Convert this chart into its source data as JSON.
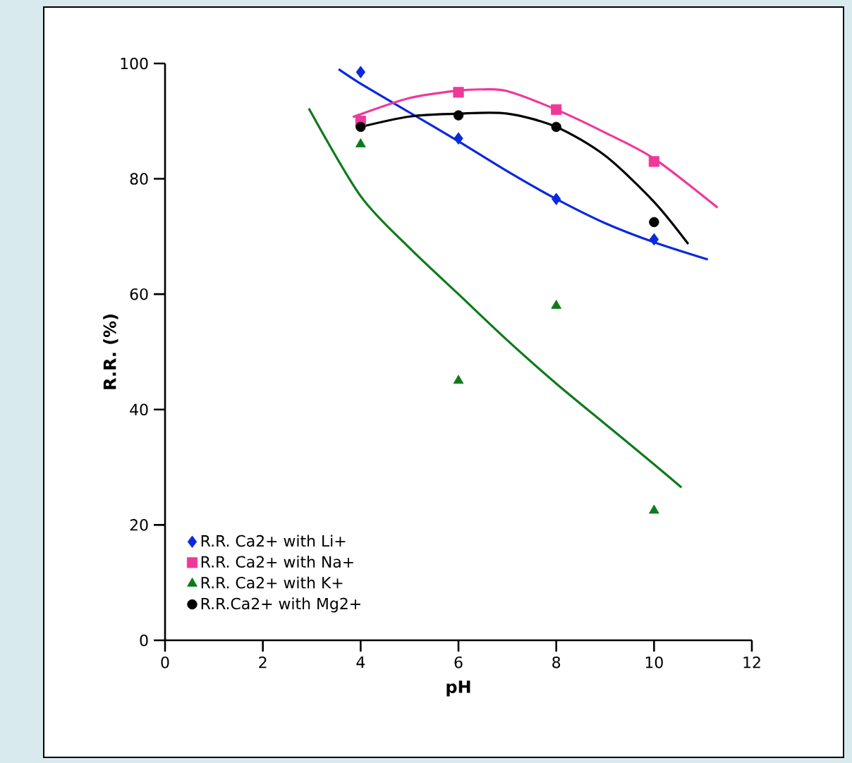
{
  "chart_data": {
    "type": "scatter",
    "xlabel": "pH",
    "ylabel": "R.R. (%)",
    "xlim": [
      0,
      12
    ],
    "xticks": [
      0,
      2,
      4,
      6,
      8,
      10,
      12
    ],
    "ylim": [
      0,
      100
    ],
    "yticks": [
      0,
      20,
      40,
      60,
      80,
      100
    ],
    "grid": false,
    "legend": "bottom left",
    "series": [
      {
        "name": "R.R. Ca2+ with Li+",
        "marker": "diamond",
        "color": "#0a28e0",
        "x": [
          4,
          6,
          8,
          10
        ],
        "values": [
          98.5,
          87,
          76.5,
          69.5
        ]
      },
      {
        "name": "R.R. Ca2+ with  Na+",
        "marker": "square",
        "color": "#f0389a",
        "x": [
          4,
          6,
          8,
          10
        ],
        "values": [
          90,
          95,
          92,
          83
        ]
      },
      {
        "name": "R.R. Ca2+ with  K+",
        "marker": "triangle",
        "color": "#0e7a1c",
        "x": [
          4,
          6,
          8,
          10
        ],
        "values": [
          86,
          45,
          58,
          22.5
        ]
      },
      {
        "name": "R.R.Ca2+ with  Mg2+",
        "marker": "circle",
        "color": "#000000",
        "x": [
          4,
          6,
          8,
          10
        ],
        "values": [
          89,
          91,
          89,
          72.5
        ]
      },
      {
        "type": "line",
        "color": "#0a28e0",
        "x": [
          3.55,
          4,
          5,
          6,
          7,
          8,
          9,
          10,
          11.1
        ],
        "values": [
          99,
          96.5,
          91.5,
          86.5,
          81.3,
          76.5,
          72.3,
          69,
          66
        ]
      },
      {
        "type": "line",
        "color": "#f0389a",
        "x": [
          3.84,
          5,
          6,
          6.5,
          7,
          8,
          9,
          10,
          11.3
        ],
        "values": [
          90.7,
          94,
          95.3,
          95.5,
          95.2,
          92,
          88,
          83.5,
          75
        ]
      },
      {
        "type": "line",
        "color": "#0e7a1c",
        "x": [
          2.94,
          4,
          5,
          6,
          7,
          8,
          9,
          10,
          10.56
        ],
        "values": [
          92.2,
          77,
          68,
          60,
          52,
          44.5,
          37.5,
          30.5,
          26.5
        ]
      },
      {
        "type": "line",
        "color": "#000000",
        "x": [
          4,
          5,
          6,
          7,
          8,
          9,
          10,
          10.7
        ],
        "values": [
          89,
          90.8,
          91.3,
          91.3,
          89,
          84,
          76,
          68.7
        ]
      }
    ]
  }
}
